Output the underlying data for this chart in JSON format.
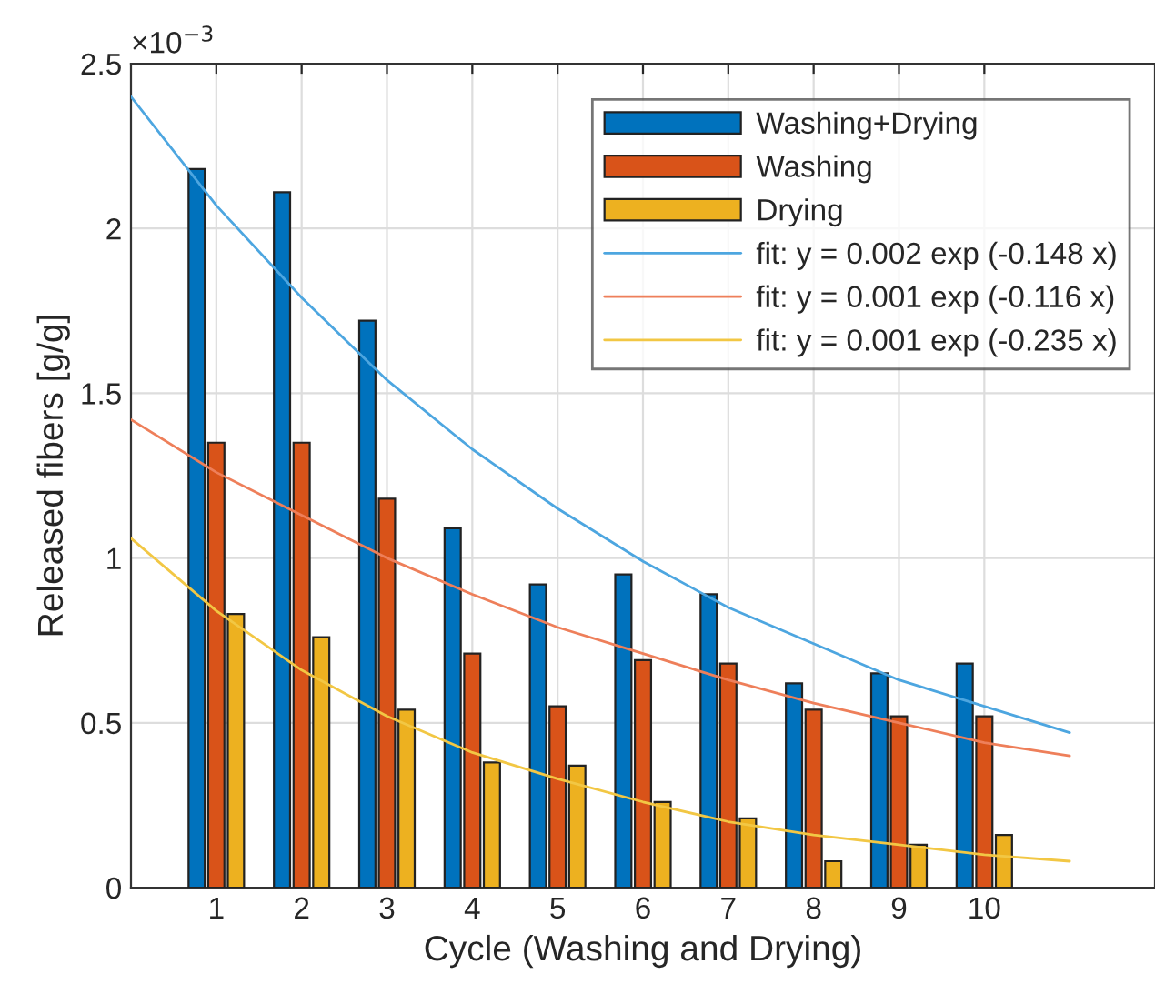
{
  "chart_data": {
    "type": "bar",
    "xlabel": "Cycle (Washing and Drying)",
    "ylabel": "Released fibers [g/g]",
    "annotations": [
      "×10$^{−3}$"
    ],
    "x": [
      1,
      2,
      3,
      4,
      5,
      6,
      7,
      8,
      9,
      10
    ],
    "series": [
      {
        "name": "Washing+Drying",
        "color": "#0072bd",
        "values": [
          2.18,
          2.11,
          1.72,
          1.09,
          0.92,
          0.95,
          0.89,
          0.62,
          0.65,
          0.68
        ]
      },
      {
        "name": "Washing",
        "color": "#d95319",
        "values": [
          1.35,
          1.35,
          1.18,
          0.71,
          0.55,
          0.69,
          0.68,
          0.54,
          0.52,
          0.52
        ]
      },
      {
        "name": "Drying",
        "color": "#edb120",
        "values": [
          0.83,
          0.76,
          0.54,
          0.38,
          0.37,
          0.26,
          0.21,
          0.08,
          0.13,
          0.16
        ]
      },
      {
        "name": "fit: y = 0.002 exp (-0.148 x)",
        "type": "line",
        "color": "#4da6e0",
        "x": [
          0,
          1,
          2,
          3,
          4,
          5,
          6,
          7,
          8,
          9,
          10,
          11
        ],
        "values": [
          2.4,
          2.07,
          1.79,
          1.54,
          1.33,
          1.15,
          0.99,
          0.85,
          0.74,
          0.63,
          0.55,
          0.47
        ]
      },
      {
        "name": "fit: y = 0.001 exp (-0.116 x)",
        "type": "line",
        "color": "#ee7f5a",
        "x": [
          0,
          1,
          2,
          3,
          4,
          5,
          6,
          7,
          8,
          9,
          10,
          11
        ],
        "values": [
          1.42,
          1.26,
          1.13,
          1.0,
          0.89,
          0.79,
          0.71,
          0.63,
          0.56,
          0.5,
          0.44,
          0.4
        ]
      },
      {
        "name": "fit: y = 0.001 exp (-0.235 x)",
        "type": "line",
        "color": "#f2c744",
        "x": [
          0,
          1,
          2,
          3,
          4,
          5,
          6,
          7,
          8,
          9,
          10,
          11
        ],
        "values": [
          1.06,
          0.84,
          0.66,
          0.52,
          0.41,
          0.33,
          0.26,
          0.2,
          0.16,
          0.13,
          0.1,
          0.08
        ]
      }
    ],
    "xlim": [
      0,
      12
    ],
    "xticks": [
      1,
      2,
      3,
      4,
      5,
      6,
      7,
      8,
      9,
      10
    ],
    "ylim": [
      0,
      2.5
    ],
    "yticks": [
      0,
      0.5,
      1,
      1.5,
      2,
      2.5
    ],
    "grid": true,
    "legend": "top right",
    "marker": "none",
    "line_style": "solid"
  }
}
